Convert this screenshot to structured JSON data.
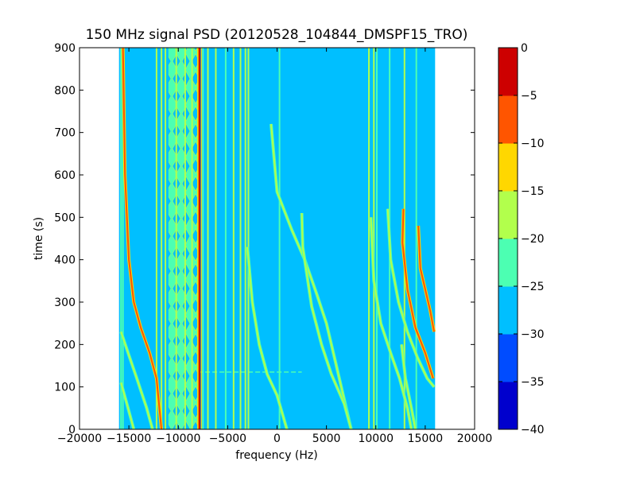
{
  "chart_data": {
    "type": "heatmap",
    "title": "150 MHz signal PSD (20120528_104844_DMSPF15_TRO)",
    "xlabel": "frequency (Hz)",
    "ylabel": "time (s)",
    "xlim": [
      -20000,
      20000
    ],
    "ylim": [
      0,
      900
    ],
    "xticks": [
      -20000,
      -15000,
      -10000,
      -5000,
      0,
      5000,
      10000,
      15000,
      20000
    ],
    "xtick_labels": [
      "−20000",
      "−15000",
      "−10000",
      "−5000",
      "0",
      "5000",
      "10000",
      "15000",
      "20000"
    ],
    "yticks": [
      0,
      100,
      200,
      300,
      400,
      500,
      600,
      700,
      800,
      900
    ],
    "ytick_labels": [
      "0",
      "100",
      "200",
      "300",
      "400",
      "500",
      "600",
      "700",
      "800",
      "900"
    ],
    "data_extent_x": [
      -16000,
      16000
    ],
    "background_level_band": [
      -30,
      -25
    ],
    "colorbar": {
      "levels": [
        -40,
        -35,
        -30,
        -25,
        -20,
        -15,
        -10,
        -5,
        0
      ],
      "tick_labels": [
        "−40",
        "−35",
        "−30",
        "−25",
        "−20",
        "−15",
        "−10",
        "−5",
        "0"
      ],
      "colors": [
        "#0000cd",
        "#004cff",
        "#00bfff",
        "#4cffb2",
        "#b2ff4c",
        "#ffd700",
        "#ff5500",
        "#cd0000"
      ]
    },
    "vertical_lines": [
      {
        "x": -15800,
        "level": -22
      },
      {
        "x": -15600,
        "level": -22
      },
      {
        "x": -12200,
        "level": -20
      },
      {
        "x": -11700,
        "level": -18
      },
      {
        "x": -11300,
        "level": -20
      },
      {
        "x": -10700,
        "level": -22
      },
      {
        "x": -10200,
        "level": -20
      },
      {
        "x": -9300,
        "level": -18
      },
      {
        "x": -8600,
        "level": -20
      },
      {
        "x": -7950,
        "level": -12
      },
      {
        "x": -7850,
        "level": -3
      },
      {
        "x": -7500,
        "level": -22
      },
      {
        "x": -7000,
        "level": -20
      },
      {
        "x": -6200,
        "level": -18
      },
      {
        "x": -5200,
        "level": -22
      },
      {
        "x": -4400,
        "level": -18
      },
      {
        "x": -3700,
        "level": -16
      },
      {
        "x": -3200,
        "level": -20
      },
      {
        "x": -2900,
        "level": -20
      },
      {
        "x": 250,
        "level": -22
      },
      {
        "x": 9300,
        "level": -20
      },
      {
        "x": 9800,
        "level": -20
      },
      {
        "x": 10100,
        "level": -22
      },
      {
        "x": 11400,
        "level": -22
      },
      {
        "x": 12900,
        "level": -18
      },
      {
        "x": 14100,
        "level": -22
      }
    ],
    "hatched_band": {
      "x_range": [
        -11000,
        -8000
      ],
      "level": -20
    },
    "drifting_traces": [
      {
        "level": -18,
        "points": [
          [
            -15800,
            230
          ],
          [
            -15000,
            175
          ],
          [
            -14200,
            120
          ],
          [
            -13200,
            50
          ],
          [
            -12600,
            0
          ]
        ]
      },
      {
        "level": -18,
        "points": [
          [
            -15800,
            110
          ],
          [
            -15200,
            60
          ],
          [
            -14500,
            0
          ]
        ]
      },
      {
        "level": -8,
        "points": [
          [
            -15600,
            900
          ],
          [
            -15400,
            600
          ],
          [
            -15000,
            400
          ],
          [
            -14500,
            300
          ],
          [
            -13800,
            240
          ],
          [
            -12900,
            180
          ],
          [
            -12200,
            120
          ],
          [
            -11700,
            0
          ]
        ]
      },
      {
        "level": -18,
        "points": [
          [
            -3000,
            430
          ],
          [
            -2500,
            300
          ],
          [
            -1800,
            200
          ],
          [
            -1000,
            130
          ],
          [
            0,
            80
          ],
          [
            1000,
            0
          ]
        ]
      },
      {
        "level": -18,
        "points": [
          [
            -600,
            720
          ],
          [
            0,
            560
          ],
          [
            1500,
            470
          ],
          [
            2800,
            400
          ],
          [
            4000,
            320
          ],
          [
            5000,
            250
          ],
          [
            6000,
            150
          ],
          [
            7000,
            50
          ],
          [
            7500,
            0
          ]
        ]
      },
      {
        "level": -18,
        "points": [
          [
            2500,
            510
          ],
          [
            2600,
            430
          ],
          [
            3500,
            290
          ],
          [
            4500,
            200
          ],
          [
            5500,
            130
          ],
          [
            6800,
            60
          ],
          [
            7500,
            0
          ]
        ]
      },
      {
        "level": -18,
        "points": [
          [
            9500,
            500
          ],
          [
            9800,
            350
          ],
          [
            10500,
            250
          ],
          [
            11500,
            180
          ],
          [
            12400,
            120
          ],
          [
            13200,
            50
          ],
          [
            13600,
            0
          ]
        ]
      },
      {
        "level": -6,
        "points": [
          [
            12800,
            520
          ],
          [
            12700,
            440
          ],
          [
            13200,
            330
          ],
          [
            14000,
            240
          ],
          [
            15000,
            180
          ],
          [
            15800,
            120
          ]
        ]
      },
      {
        "level": -18,
        "points": [
          [
            11200,
            520
          ],
          [
            11500,
            400
          ],
          [
            12300,
            300
          ],
          [
            13200,
            230
          ],
          [
            14200,
            170
          ],
          [
            15200,
            120
          ],
          [
            15900,
            100
          ]
        ]
      },
      {
        "level": -6,
        "points": [
          [
            14300,
            480
          ],
          [
            14500,
            380
          ],
          [
            15000,
            330
          ],
          [
            15500,
            280
          ],
          [
            15900,
            230
          ]
        ]
      },
      {
        "level": -18,
        "points": [
          [
            12600,
            200
          ],
          [
            13000,
            120
          ],
          [
            13600,
            50
          ],
          [
            14000,
            0
          ]
        ]
      }
    ],
    "horizontal_segment": {
      "x_range": [
        -8000,
        2500
      ],
      "y": 135,
      "level": -22
    },
    "grid": false
  }
}
